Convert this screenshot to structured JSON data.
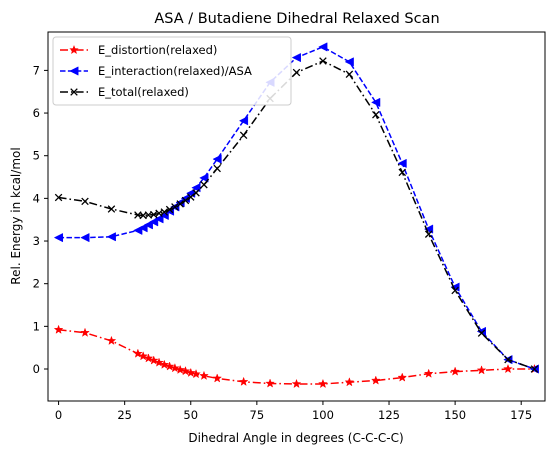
{
  "chart_data": {
    "type": "line",
    "title": "ASA / Butadiene Dihedral Relaxed Scan",
    "xlabel": "Dihedral Angle in degrees (C-C-C-C)",
    "ylabel": "Rel. Energy in kcal/mol",
    "xlim": [
      -4,
      184
    ],
    "ylim": [
      -0.75,
      7.9
    ],
    "xticks": [
      0,
      25,
      50,
      75,
      100,
      125,
      150,
      175
    ],
    "yticks": [
      0,
      1,
      2,
      3,
      4,
      5,
      6,
      7
    ],
    "grid": false,
    "legend_position": "upper-left",
    "series": [
      {
        "name": "E_distortion(relaxed)",
        "color": "#ff0000",
        "linestyle": "dashdot",
        "marker": "star",
        "x": [
          0,
          10,
          20,
          30,
          32,
          34,
          36,
          38,
          40,
          42,
          44,
          46,
          48,
          50,
          52,
          55,
          60,
          70,
          80,
          90,
          100,
          110,
          120,
          130,
          140,
          150,
          160,
          170,
          180
        ],
        "y": [
          0.92,
          0.85,
          0.66,
          0.36,
          0.3,
          0.25,
          0.2,
          0.15,
          0.1,
          0.06,
          0.02,
          -0.02,
          -0.05,
          -0.09,
          -0.12,
          -0.16,
          -0.22,
          -0.3,
          -0.34,
          -0.35,
          -0.35,
          -0.31,
          -0.27,
          -0.2,
          -0.11,
          -0.06,
          -0.03,
          0.0,
          0.0
        ]
      },
      {
        "name": "E_interaction(relaxed)/ASA",
        "color": "#0000ff",
        "linestyle": "dashed",
        "marker": "triangle-left",
        "x": [
          0,
          10,
          20,
          30,
          32,
          34,
          36,
          38,
          40,
          42,
          44,
          46,
          48,
          50,
          52,
          55,
          60,
          70,
          80,
          90,
          100,
          110,
          120,
          130,
          140,
          150,
          160,
          170,
          180
        ],
        "y": [
          3.08,
          3.08,
          3.1,
          3.25,
          3.31,
          3.38,
          3.45,
          3.52,
          3.6,
          3.7,
          3.8,
          3.9,
          4.0,
          4.12,
          4.25,
          4.48,
          4.92,
          5.82,
          6.72,
          7.3,
          7.55,
          7.2,
          6.25,
          4.82,
          3.28,
          1.92,
          0.88,
          0.22,
          0.0
        ]
      },
      {
        "name": "E_total(relaxed)",
        "color": "#000000",
        "linestyle": "dashdot",
        "marker": "x",
        "x": [
          0,
          10,
          20,
          30,
          32,
          34,
          36,
          38,
          40,
          42,
          44,
          46,
          48,
          50,
          52,
          55,
          60,
          70,
          80,
          90,
          100,
          110,
          120,
          130,
          140,
          150,
          160,
          170,
          180
        ],
        "y": [
          4.02,
          3.93,
          3.75,
          3.61,
          3.6,
          3.61,
          3.62,
          3.65,
          3.68,
          3.74,
          3.8,
          3.87,
          3.95,
          4.03,
          4.13,
          4.32,
          4.7,
          5.48,
          6.34,
          6.95,
          7.22,
          6.91,
          5.96,
          4.61,
          3.16,
          1.84,
          0.84,
          0.22,
          0.0
        ]
      }
    ]
  }
}
